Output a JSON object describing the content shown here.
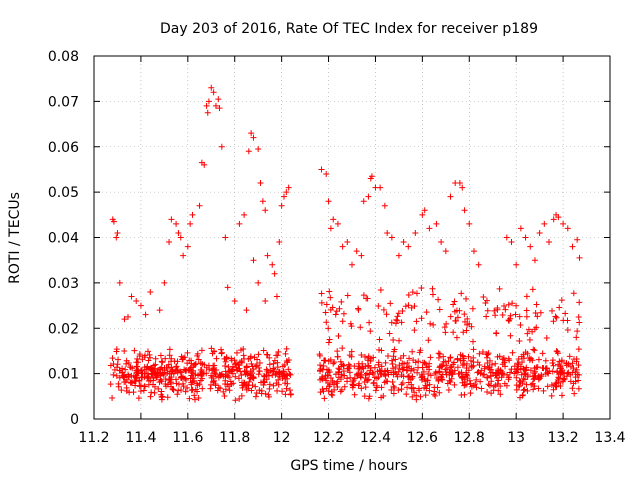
{
  "chart_data": {
    "type": "scatter",
    "title": "Day 203 of 2016, Rate Of TEC Index for receiver p189",
    "xlabel": "GPS time / hours",
    "ylabel": "ROTI / TECUs",
    "xlim": [
      11.2,
      13.4
    ],
    "ylim": [
      0,
      0.08
    ],
    "xticks": [
      "11.2",
      "11.4",
      "11.6",
      "11.8",
      "12",
      "12.2",
      "12.4",
      "12.6",
      "12.8",
      "13",
      "13.2",
      "13.4"
    ],
    "yticks": [
      "0",
      "0.01",
      "0.02",
      "0.03",
      "0.04",
      "0.05",
      "0.06",
      "0.07",
      "0.08"
    ],
    "grid": true,
    "marker": "+",
    "color": "#ff0000",
    "series": [
      {
        "name": "ROTI",
        "clusters": [
          {
            "x_range": [
              11.27,
              12.04
            ],
            "y_range": [
              0.004,
              0.016
            ],
            "count": 520
          },
          {
            "x_range": [
              12.16,
              13.27
            ],
            "y_range": [
              0.004,
              0.016
            ],
            "count": 620
          },
          {
            "x_range": [
              12.16,
              13.27
            ],
            "y_range": [
              0.016,
              0.03
            ],
            "count": 150
          }
        ],
        "points": [
          [
            11.28,
            0.044
          ],
          [
            11.285,
            0.0435
          ],
          [
            11.3,
            0.041
          ],
          [
            11.295,
            0.04
          ],
          [
            11.31,
            0.03
          ],
          [
            11.33,
            0.022
          ],
          [
            11.345,
            0.0225
          ],
          [
            11.36,
            0.027
          ],
          [
            11.38,
            0.026
          ],
          [
            11.4,
            0.025
          ],
          [
            11.42,
            0.023
          ],
          [
            11.44,
            0.028
          ],
          [
            11.48,
            0.024
          ],
          [
            11.5,
            0.03
          ],
          [
            11.52,
            0.039
          ],
          [
            11.53,
            0.044
          ],
          [
            11.55,
            0.043
          ],
          [
            11.56,
            0.041
          ],
          [
            11.57,
            0.04
          ],
          [
            11.58,
            0.036
          ],
          [
            11.6,
            0.038
          ],
          [
            11.61,
            0.043
          ],
          [
            11.62,
            0.045
          ],
          [
            11.65,
            0.047
          ],
          [
            11.66,
            0.0565
          ],
          [
            11.67,
            0.056
          ],
          [
            11.68,
            0.069
          ],
          [
            11.685,
            0.0675
          ],
          [
            11.69,
            0.07
          ],
          [
            11.7,
            0.073
          ],
          [
            11.71,
            0.072
          ],
          [
            11.72,
            0.069
          ],
          [
            11.73,
            0.0705
          ],
          [
            11.735,
            0.0685
          ],
          [
            11.745,
            0.06
          ],
          [
            11.76,
            0.04
          ],
          [
            11.77,
            0.029
          ],
          [
            11.8,
            0.026
          ],
          [
            11.82,
            0.043
          ],
          [
            11.84,
            0.045
          ],
          [
            11.86,
            0.059
          ],
          [
            11.87,
            0.063
          ],
          [
            11.88,
            0.062
          ],
          [
            11.9,
            0.0595
          ],
          [
            11.91,
            0.052
          ],
          [
            11.92,
            0.048
          ],
          [
            11.93,
            0.046
          ],
          [
            11.94,
            0.036
          ],
          [
            11.96,
            0.034
          ],
          [
            11.98,
            0.027
          ],
          [
            11.99,
            0.039
          ],
          [
            12.0,
            0.047
          ],
          [
            12.01,
            0.049
          ],
          [
            12.02,
            0.05
          ],
          [
            12.03,
            0.051
          ],
          [
            11.88,
            0.035
          ],
          [
            11.9,
            0.03
          ],
          [
            11.93,
            0.026
          ],
          [
            11.97,
            0.032
          ],
          [
            11.85,
            0.024
          ],
          [
            12.17,
            0.055
          ],
          [
            12.19,
            0.054
          ],
          [
            12.2,
            0.048
          ],
          [
            12.21,
            0.042
          ],
          [
            12.22,
            0.044
          ],
          [
            12.24,
            0.043
          ],
          [
            12.26,
            0.038
          ],
          [
            12.28,
            0.039
          ],
          [
            12.3,
            0.034
          ],
          [
            12.32,
            0.037
          ],
          [
            12.34,
            0.036
          ],
          [
            12.35,
            0.048
          ],
          [
            12.37,
            0.049
          ],
          [
            12.38,
            0.053
          ],
          [
            12.385,
            0.0535
          ],
          [
            12.4,
            0.051
          ],
          [
            12.42,
            0.051
          ],
          [
            12.44,
            0.047
          ],
          [
            12.45,
            0.041
          ],
          [
            12.47,
            0.04
          ],
          [
            12.5,
            0.036
          ],
          [
            12.52,
            0.039
          ],
          [
            12.54,
            0.038
          ],
          [
            12.57,
            0.041
          ],
          [
            12.6,
            0.045
          ],
          [
            12.61,
            0.046
          ],
          [
            12.63,
            0.042
          ],
          [
            12.66,
            0.043
          ],
          [
            12.68,
            0.039
          ],
          [
            12.7,
            0.037
          ],
          [
            12.72,
            0.049
          ],
          [
            12.74,
            0.052
          ],
          [
            12.76,
            0.052
          ],
          [
            12.77,
            0.051
          ],
          [
            12.78,
            0.046
          ],
          [
            12.8,
            0.043
          ],
          [
            12.82,
            0.037
          ],
          [
            12.84,
            0.034
          ],
          [
            12.96,
            0.04
          ],
          [
            12.98,
            0.039
          ],
          [
            13.0,
            0.034
          ],
          [
            13.02,
            0.042
          ],
          [
            13.04,
            0.04
          ],
          [
            13.06,
            0.038
          ],
          [
            13.08,
            0.035
          ],
          [
            13.1,
            0.041
          ],
          [
            13.12,
            0.043
          ],
          [
            13.14,
            0.039
          ],
          [
            13.16,
            0.044
          ],
          [
            13.17,
            0.045
          ],
          [
            13.18,
            0.0445
          ],
          [
            13.2,
            0.043
          ],
          [
            13.22,
            0.042
          ],
          [
            13.24,
            0.038
          ],
          [
            13.26,
            0.0395
          ],
          [
            13.27,
            0.0355
          ]
        ]
      }
    ]
  }
}
